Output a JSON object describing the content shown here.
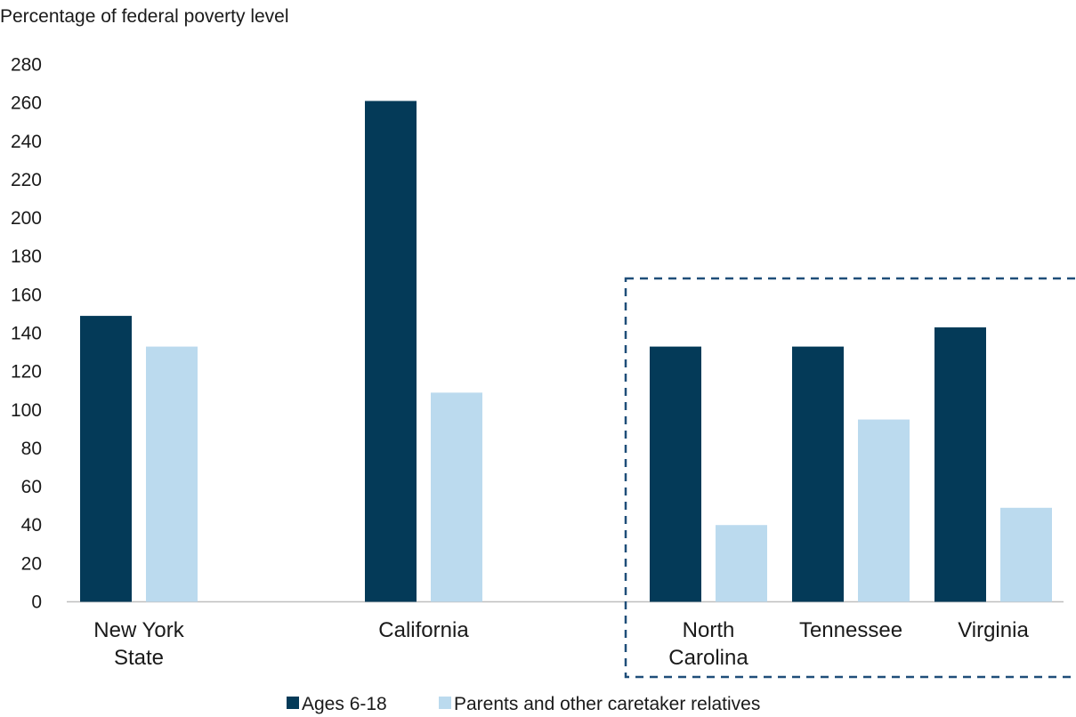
{
  "chart_data": {
    "type": "bar",
    "title": "",
    "ylabel": "Percentage of federal poverty level",
    "xlabel": "",
    "ylim": [
      0,
      280
    ],
    "yticks": [
      0,
      20,
      40,
      60,
      80,
      100,
      120,
      140,
      160,
      180,
      200,
      220,
      240,
      260,
      280
    ],
    "categories": [
      "New York State",
      "California",
      "North Carolina",
      "Tennessee",
      "Virginia"
    ],
    "category_lines": [
      [
        "New York",
        "State"
      ],
      [
        "California"
      ],
      [
        "North",
        "Carolina"
      ],
      [
        "Tennessee"
      ],
      [
        "Virginia"
      ]
    ],
    "series": [
      {
        "name": "Ages 6-18",
        "color": "#043a58",
        "values": [
          149,
          261,
          133,
          133,
          143
        ]
      },
      {
        "name": "Parents and other caretaker relatives",
        "color": "#bbdaee",
        "values": [
          133,
          109,
          40,
          95,
          49
        ]
      }
    ],
    "highlight_box": {
      "categories": [
        "North Carolina",
        "Tennessee",
        "Virginia"
      ],
      "style": "dashed",
      "color": "#1f4e79"
    },
    "grid": false,
    "legend": "bottom"
  }
}
